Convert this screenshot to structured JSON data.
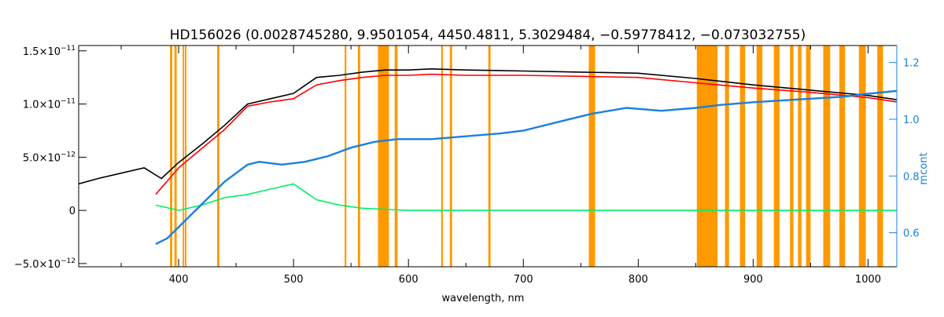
{
  "chart_data": {
    "type": "line",
    "title": "HD156026    (0.0028745280, 9.9501054, 4450.4811, 5.3029484, −0.59778412, −0.073032755)",
    "xlabel": "wavelength, nm",
    "ylabel_left": "",
    "ylabel_right": "mcont",
    "xlim": [
      313,
      1025
    ],
    "ylim_left": [
      -5.3e-12,
      1.55e-11
    ],
    "ylim_right": [
      0.48,
      1.26
    ],
    "x_ticks": [
      {
        "value": 400,
        "label": "400"
      },
      {
        "value": 500,
        "label": "500"
      },
      {
        "value": 600,
        "label": "600"
      },
      {
        "value": 700,
        "label": "700"
      },
      {
        "value": 800,
        "label": "800"
      },
      {
        "value": 900,
        "label": "900"
      },
      {
        "value": 1000,
        "label": "1000"
      }
    ],
    "y_ticks_left": [
      {
        "value": 1.5e-11,
        "base": "1.5×10",
        "exp": "−11"
      },
      {
        "value": 1e-11,
        "base": "1.0×10",
        "exp": "−11"
      },
      {
        "value": 5e-12,
        "base": "5.0×10",
        "exp": "−12"
      },
      {
        "value": 0,
        "base": "0",
        "exp": ""
      },
      {
        "value": -5e-12,
        "base": "−5.0×10",
        "exp": "−12"
      }
    ],
    "y_ticks_right": [
      {
        "value": 1.2,
        "label": "1.2"
      },
      {
        "value": 1.0,
        "label": "1.0"
      },
      {
        "value": 0.8,
        "label": "0.8"
      },
      {
        "value": 0.6,
        "label": "0.6"
      }
    ],
    "masked_bands": [
      [
        392.5,
        394.5
      ],
      [
        396.3,
        398.3
      ],
      [
        403.5,
        404.8
      ],
      [
        405.5,
        406.8
      ],
      [
        433.5,
        435.5
      ],
      [
        544.5,
        546
      ],
      [
        556,
        558
      ],
      [
        573.5,
        583
      ],
      [
        588,
        590.5
      ],
      [
        628.5,
        630
      ],
      [
        636,
        638
      ],
      [
        669.5,
        671.5
      ],
      [
        757,
        762.5
      ],
      [
        851,
        869
      ],
      [
        875.5,
        879
      ],
      [
        888.5,
        893
      ],
      [
        903,
        908
      ],
      [
        918,
        923
      ],
      [
        932,
        935
      ],
      [
        939,
        942
      ],
      [
        946,
        950
      ],
      [
        961,
        967
      ],
      [
        975,
        980
      ],
      [
        992,
        998
      ],
      [
        1008,
        1013
      ]
    ],
    "band_color": "#ff9900",
    "series": [
      {
        "color": "#000000",
        "points": [
          [
            313,
            2.5e-12
          ],
          [
            330,
            3e-12
          ],
          [
            350,
            3.5e-12
          ],
          [
            370,
            4e-12
          ],
          [
            385,
            3e-12
          ],
          [
            400,
            4.5e-12
          ],
          [
            420,
            6.2e-12
          ],
          [
            440,
            8e-12
          ],
          [
            460,
            1e-11
          ],
          [
            480,
            1.05e-11
          ],
          [
            500,
            1.1e-11
          ],
          [
            520,
            1.25e-11
          ],
          [
            540,
            1.27e-11
          ],
          [
            560,
            1.3e-11
          ],
          [
            580,
            1.32e-11
          ],
          [
            600,
            1.32e-11
          ],
          [
            620,
            1.33e-11
          ],
          [
            650,
            1.32e-11
          ],
          [
            700,
            1.31e-11
          ],
          [
            750,
            1.3e-11
          ],
          [
            800,
            1.29e-11
          ],
          [
            850,
            1.24e-11
          ],
          [
            900,
            1.18e-11
          ],
          [
            950,
            1.13e-11
          ],
          [
            1000,
            1.08e-11
          ],
          [
            1025,
            1.04e-11
          ]
        ]
      },
      {
        "color": "#ff0000",
        "points": [
          [
            380,
            1.5e-12
          ],
          [
            400,
            4e-12
          ],
          [
            420,
            5.8e-12
          ],
          [
            440,
            7.6e-12
          ],
          [
            460,
            9.8e-12
          ],
          [
            480,
            1.02e-11
          ],
          [
            500,
            1.05e-11
          ],
          [
            520,
            1.18e-11
          ],
          [
            540,
            1.22e-11
          ],
          [
            560,
            1.25e-11
          ],
          [
            580,
            1.27e-11
          ],
          [
            600,
            1.27e-11
          ],
          [
            620,
            1.28e-11
          ],
          [
            650,
            1.27e-11
          ],
          [
            700,
            1.27e-11
          ],
          [
            750,
            1.26e-11
          ],
          [
            800,
            1.25e-11
          ],
          [
            850,
            1.2e-11
          ],
          [
            900,
            1.15e-11
          ],
          [
            950,
            1.11e-11
          ],
          [
            1000,
            1.06e-11
          ],
          [
            1025,
            1.02e-11
          ]
        ]
      },
      {
        "color": "#00ee66",
        "points": [
          [
            380,
            5e-13
          ],
          [
            400,
            0.0
          ],
          [
            420,
            5e-13
          ],
          [
            440,
            1.2e-12
          ],
          [
            460,
            1.5e-12
          ],
          [
            480,
            2e-12
          ],
          [
            500,
            2.5e-12
          ],
          [
            520,
            1e-12
          ],
          [
            540,
            5e-13
          ],
          [
            560,
            2e-13
          ],
          [
            600,
            0.0
          ],
          [
            650,
            0.0
          ],
          [
            700,
            0.0
          ],
          [
            750,
            0.0
          ],
          [
            800,
            0.0
          ],
          [
            850,
            0.0
          ],
          [
            900,
            0.0
          ],
          [
            950,
            0.0
          ],
          [
            1000,
            0.0
          ],
          [
            1025,
            0.0
          ]
        ]
      },
      {
        "color": "#1a7fe0",
        "axis": "right",
        "points": [
          [
            380,
            0.56
          ],
          [
            390,
            0.58
          ],
          [
            400,
            0.62
          ],
          [
            410,
            0.66
          ],
          [
            420,
            0.7
          ],
          [
            430,
            0.74
          ],
          [
            440,
            0.78
          ],
          [
            450,
            0.81
          ],
          [
            460,
            0.84
          ],
          [
            470,
            0.85
          ],
          [
            490,
            0.84
          ],
          [
            510,
            0.85
          ],
          [
            530,
            0.87
          ],
          [
            550,
            0.9
          ],
          [
            570,
            0.92
          ],
          [
            590,
            0.93
          ],
          [
            620,
            0.93
          ],
          [
            650,
            0.94
          ],
          [
            680,
            0.95
          ],
          [
            700,
            0.96
          ],
          [
            730,
            0.99
          ],
          [
            760,
            1.02
          ],
          [
            790,
            1.04
          ],
          [
            820,
            1.03
          ],
          [
            850,
            1.04
          ],
          [
            870,
            1.05
          ],
          [
            900,
            1.06
          ],
          [
            940,
            1.07
          ],
          [
            980,
            1.08
          ],
          [
            1000,
            1.09
          ],
          [
            1025,
            1.1
          ]
        ]
      }
    ],
    "grid": false,
    "legend": "none"
  }
}
